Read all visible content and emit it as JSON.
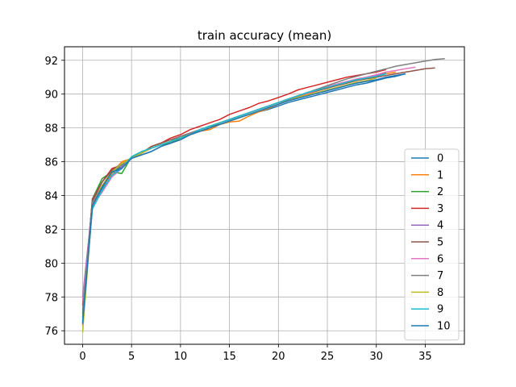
{
  "chart_data": {
    "type": "line",
    "title": "train accuracy (mean)",
    "xlabel": "",
    "ylabel": "",
    "xlim": [
      -1.85,
      39.0
    ],
    "ylim": [
      75.2,
      92.8
    ],
    "xticks": [
      0,
      5,
      10,
      15,
      20,
      25,
      30,
      35
    ],
    "yticks": [
      76,
      78,
      80,
      82,
      84,
      86,
      88,
      90,
      92
    ],
    "grid": true,
    "legend_position": "lower-right",
    "series": [
      {
        "name": "0",
        "color": "#1f77b4",
        "x": [
          0,
          1,
          2,
          3,
          4,
          5,
          6,
          7,
          8,
          9,
          10,
          11,
          12,
          13,
          14,
          15,
          16,
          17,
          18,
          19,
          20,
          21,
          22,
          23,
          24,
          25,
          26,
          27,
          28,
          29,
          30,
          31,
          32,
          33
        ],
        "values": [
          76.5,
          83.3,
          84.4,
          85.4,
          85.7,
          86.2,
          86.4,
          86.6,
          86.9,
          87.1,
          87.4,
          87.6,
          87.8,
          88.0,
          88.2,
          88.4,
          88.6,
          88.8,
          88.95,
          89.1,
          89.3,
          89.5,
          89.65,
          89.8,
          89.95,
          90.1,
          90.25,
          90.4,
          90.55,
          90.65,
          90.8,
          90.95,
          91.05,
          91.2
        ]
      },
      {
        "name": "1",
        "color": "#ff7f0e",
        "x": [
          0,
          1,
          2,
          3,
          4,
          5,
          6,
          7,
          8,
          9,
          10,
          11,
          12,
          13,
          14,
          15,
          16,
          17,
          18,
          19,
          20,
          21,
          22,
          23,
          24,
          25,
          26,
          27,
          28,
          29,
          30,
          31,
          32
        ],
        "values": [
          76.3,
          83.5,
          84.5,
          85.3,
          86.0,
          86.2,
          86.5,
          86.8,
          87.0,
          87.1,
          87.3,
          87.6,
          87.8,
          87.9,
          88.2,
          88.35,
          88.4,
          88.7,
          88.95,
          89.15,
          89.4,
          89.65,
          89.85,
          90.0,
          90.2,
          90.4,
          90.55,
          90.7,
          90.85,
          90.95,
          91.1,
          91.2,
          91.3
        ]
      },
      {
        "name": "2",
        "color": "#2ca02c",
        "x": [
          0,
          1,
          2,
          3,
          4,
          5,
          6,
          7,
          8,
          9,
          10,
          11,
          12,
          13,
          14,
          15,
          16,
          17,
          18,
          19,
          20,
          21,
          22,
          23,
          24,
          25,
          26,
          27,
          28,
          29,
          30,
          31
        ],
        "values": [
          77.0,
          83.8,
          85.0,
          85.4,
          85.3,
          86.3,
          86.5,
          86.8,
          87.0,
          87.1,
          87.4,
          87.7,
          87.9,
          88.1,
          88.3,
          88.5,
          88.7,
          88.9,
          89.1,
          89.3,
          89.5,
          89.7,
          89.9,
          90.1,
          90.25,
          90.4,
          90.55,
          90.7,
          90.85,
          91.0,
          91.1,
          91.25
        ]
      },
      {
        "name": "3",
        "color": "#d62728",
        "x": [
          0,
          1,
          2,
          3,
          4,
          5,
          6,
          7,
          8,
          9,
          10,
          11,
          12,
          13,
          14,
          15,
          16,
          17,
          18,
          19,
          20,
          21,
          22,
          23,
          24,
          25,
          26,
          27,
          28,
          29,
          30,
          31
        ],
        "values": [
          77.5,
          83.7,
          84.8,
          85.6,
          85.8,
          86.2,
          86.5,
          86.9,
          87.1,
          87.4,
          87.6,
          87.9,
          88.1,
          88.3,
          88.5,
          88.8,
          89.0,
          89.2,
          89.45,
          89.6,
          89.8,
          90.0,
          90.25,
          90.4,
          90.55,
          90.7,
          90.85,
          91.0,
          91.1,
          91.2,
          91.3,
          91.45
        ]
      },
      {
        "name": "4",
        "color": "#9467bd",
        "x": [
          0,
          1,
          2,
          3,
          4,
          5,
          6,
          7,
          8,
          9,
          10,
          11,
          12,
          13,
          14,
          15,
          16,
          17,
          18,
          19,
          20,
          21,
          22,
          23,
          24,
          25,
          26,
          27,
          28,
          29,
          30,
          31
        ],
        "values": [
          78.0,
          83.5,
          84.3,
          85.2,
          85.7,
          86.2,
          86.5,
          86.8,
          87.0,
          87.2,
          87.4,
          87.6,
          87.8,
          88.0,
          88.3,
          88.5,
          88.7,
          88.9,
          89.1,
          89.3,
          89.5,
          89.7,
          89.9,
          90.05,
          90.2,
          90.4,
          90.55,
          90.7,
          90.85,
          91.0,
          91.1,
          91.2
        ]
      },
      {
        "name": "5",
        "color": "#8c564b",
        "x": [
          0,
          1,
          2,
          3,
          4,
          5,
          6,
          7,
          8,
          9,
          10,
          11,
          12,
          13,
          14,
          15,
          16,
          17,
          18,
          19,
          20,
          21,
          22,
          23,
          24,
          25,
          26,
          27,
          28,
          29,
          30,
          31,
          32,
          33,
          34,
          35,
          36
        ],
        "values": [
          76.8,
          83.8,
          84.8,
          85.5,
          85.9,
          86.2,
          86.5,
          86.9,
          87.1,
          87.3,
          87.5,
          87.7,
          87.8,
          88.0,
          88.3,
          88.5,
          88.7,
          88.9,
          89.1,
          89.3,
          89.5,
          89.7,
          89.9,
          90.05,
          90.2,
          90.35,
          90.5,
          90.65,
          90.8,
          90.9,
          91.0,
          91.1,
          91.2,
          91.3,
          91.4,
          91.5,
          91.55
        ]
      },
      {
        "name": "6",
        "color": "#e377c2",
        "x": [
          0,
          1,
          2,
          3,
          4,
          5,
          6,
          7,
          8,
          9,
          10,
          11,
          12,
          13,
          14,
          15,
          16,
          17,
          18,
          19,
          20,
          21,
          22,
          23,
          24,
          25,
          26,
          27,
          28,
          29,
          30,
          31,
          32,
          33,
          34
        ],
        "values": [
          77.8,
          83.4,
          84.2,
          85.1,
          85.6,
          86.2,
          86.5,
          86.8,
          87.0,
          87.2,
          87.5,
          87.7,
          87.9,
          88.1,
          88.3,
          88.5,
          88.7,
          88.9,
          89.1,
          89.3,
          89.5,
          89.7,
          89.9,
          90.05,
          90.25,
          90.45,
          90.6,
          90.75,
          90.9,
          91.0,
          91.15,
          91.3,
          91.4,
          91.5,
          91.6
        ]
      },
      {
        "name": "7",
        "color": "#7f7f7f",
        "x": [
          0,
          1,
          2,
          3,
          4,
          5,
          6,
          7,
          8,
          9,
          10,
          11,
          12,
          13,
          14,
          15,
          16,
          17,
          18,
          19,
          20,
          21,
          22,
          23,
          24,
          25,
          26,
          27,
          28,
          29,
          30,
          31,
          32,
          33,
          34,
          35,
          36,
          37
        ],
        "values": [
          77.2,
          83.6,
          84.6,
          85.4,
          85.8,
          86.2,
          86.5,
          86.8,
          87.0,
          87.2,
          87.5,
          87.7,
          87.9,
          88.1,
          88.3,
          88.5,
          88.7,
          88.9,
          89.1,
          89.3,
          89.5,
          89.7,
          89.9,
          90.1,
          90.3,
          90.5,
          90.7,
          90.9,
          91.05,
          91.2,
          91.35,
          91.5,
          91.65,
          91.75,
          91.85,
          91.95,
          92.05,
          92.1
        ]
      },
      {
        "name": "8",
        "color": "#bcbd22",
        "x": [
          0,
          1,
          2,
          3,
          4,
          5,
          6,
          7,
          8,
          9,
          10,
          11,
          12,
          13,
          14,
          15,
          16,
          17,
          18,
          19,
          20,
          21,
          22,
          23,
          24,
          25,
          26,
          27,
          28,
          29,
          30
        ],
        "values": [
          75.9,
          83.4,
          84.6,
          85.4,
          85.9,
          86.2,
          86.5,
          86.8,
          87.0,
          87.2,
          87.4,
          87.6,
          87.8,
          88.0,
          88.2,
          88.4,
          88.6,
          88.8,
          89.0,
          89.2,
          89.4,
          89.6,
          89.8,
          89.95,
          90.1,
          90.25,
          90.4,
          90.55,
          90.7,
          90.8,
          90.95
        ]
      },
      {
        "name": "9",
        "color": "#17becf",
        "x": [
          0,
          1,
          2,
          3,
          4,
          5,
          6,
          7,
          8,
          9,
          10,
          11,
          12,
          13,
          14,
          15,
          16,
          17,
          18,
          19,
          20,
          21,
          22,
          23,
          24,
          25,
          26,
          27,
          28,
          29,
          30,
          31
        ],
        "values": [
          76.6,
          83.2,
          84.3,
          85.2,
          85.6,
          86.3,
          86.6,
          86.8,
          87.0,
          87.2,
          87.4,
          87.6,
          87.9,
          88.1,
          88.3,
          88.5,
          88.7,
          88.9,
          89.1,
          89.3,
          89.5,
          89.7,
          89.9,
          90.1,
          90.25,
          90.4,
          90.55,
          90.7,
          90.85,
          90.95,
          91.05,
          91.2
        ]
      },
      {
        "name": "10",
        "color": "#1f77b4",
        "x": [
          0,
          1,
          2,
          3,
          4,
          5,
          6,
          7,
          8,
          9,
          10,
          11,
          12,
          13,
          14,
          15,
          16,
          17,
          18,
          19,
          20,
          21,
          22,
          23,
          24,
          25,
          26,
          27,
          28,
          29,
          30,
          31,
          32,
          33
        ],
        "values": [
          76.4,
          83.4,
          84.5,
          85.4,
          85.6,
          86.2,
          86.4,
          86.6,
          86.9,
          87.1,
          87.3,
          87.6,
          87.8,
          88.0,
          88.2,
          88.4,
          88.6,
          88.8,
          89.0,
          89.2,
          89.4,
          89.6,
          89.75,
          89.9,
          90.05,
          90.2,
          90.35,
          90.5,
          90.65,
          90.75,
          90.85,
          91.0,
          91.1,
          91.2
        ]
      }
    ]
  }
}
